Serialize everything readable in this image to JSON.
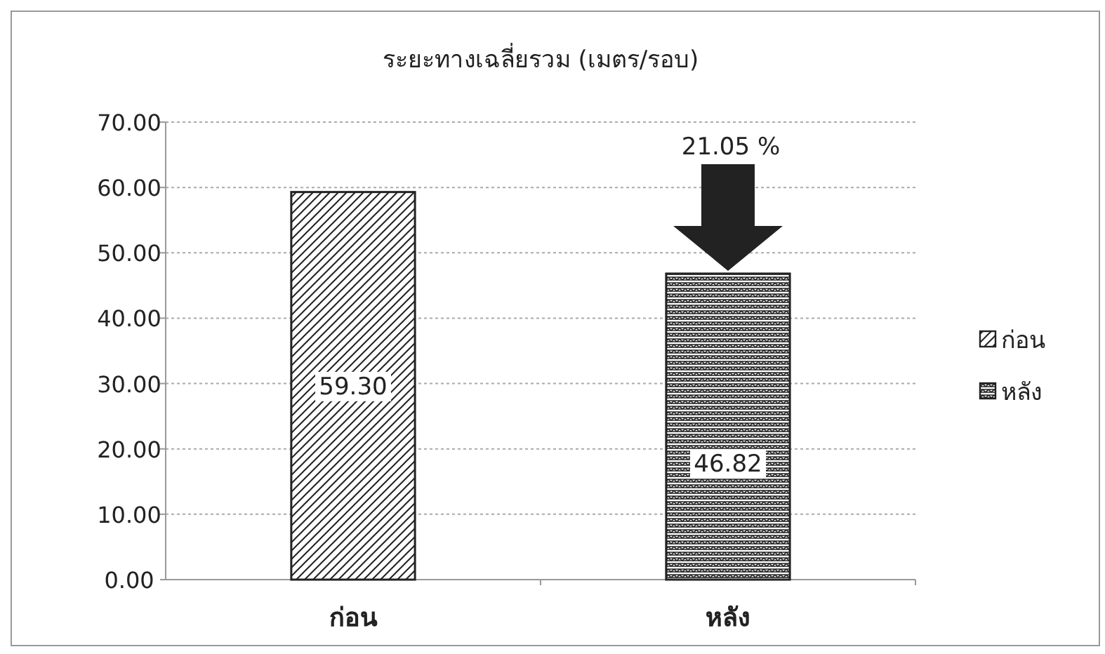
{
  "chart_data": {
    "type": "bar",
    "title": "ระยะทางเฉลี่ยรวม (เมตร/รอบ)",
    "categories": [
      "ก่อน",
      "หลัง"
    ],
    "series": [
      {
        "name": "ก่อน",
        "color": "#222222",
        "values": [
          59.3,
          null
        ],
        "value_labels": [
          "59.30",
          null
        ]
      },
      {
        "name": "หลัง",
        "color": "#222222",
        "values": [
          null,
          46.82
        ],
        "value_labels": [
          null,
          "46.82"
        ]
      }
    ],
    "annotations": [
      "21.05 %"
    ],
    "ylim": [
      0,
      70
    ],
    "yticks": [
      {
        "value": 0,
        "label": "0.00"
      },
      {
        "value": 10,
        "label": "10.00"
      },
      {
        "value": 20,
        "label": "20.00"
      },
      {
        "value": 30,
        "label": "30.00"
      },
      {
        "value": 40,
        "label": "40.00"
      },
      {
        "value": 50,
        "label": "50.00"
      },
      {
        "value": 60,
        "label": "60.00"
      },
      {
        "value": 70,
        "label": "70.00"
      }
    ],
    "grid": "y",
    "legend": "right"
  }
}
